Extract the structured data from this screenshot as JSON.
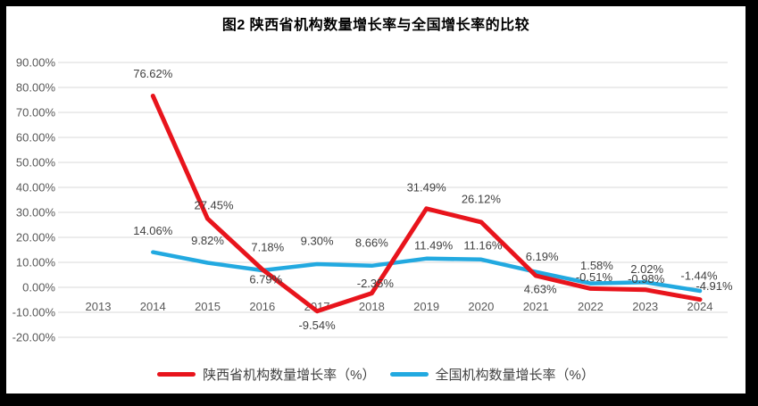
{
  "title": "图2 陕西省机构数量增长率与全国增长率的比较",
  "chart_data": {
    "type": "line",
    "title": "图2 陕西省机构数量增长率与全国增长率的比较",
    "categories": [
      "2013",
      "2014",
      "2015",
      "2016",
      "2017",
      "2018",
      "2019",
      "2020",
      "2021",
      "2022",
      "2023",
      "2024"
    ],
    "series": [
      {
        "key": "shaanxi",
        "name": "陕西省机构数量增长率（%）",
        "color": "#e8141c",
        "stroke_width": 5,
        "values": [
          null,
          76.62,
          27.45,
          7.18,
          -9.54,
          -2.35,
          31.49,
          26.12,
          4.63,
          -0.51,
          -0.98,
          -4.91
        ]
      },
      {
        "key": "national",
        "name": "全国机构数量增长率（%）",
        "color": "#22a9e0",
        "stroke_width": 4.5,
        "values": [
          null,
          14.06,
          9.82,
          6.79,
          9.3,
          8.66,
          11.49,
          11.16,
          6.19,
          1.58,
          2.02,
          -1.44
        ]
      }
    ],
    "ylim": [
      -20,
      90
    ],
    "ytick_step": 10,
    "ytick_labels": [
      "90.00%",
      "80.00%",
      "70.00%",
      "60.00%",
      "50.00%",
      "40.00%",
      "30.00%",
      "20.00%",
      "10.00%",
      "0.00%",
      "-10.00%",
      "-20.00%"
    ],
    "data_labels": true,
    "grid": true,
    "legend_position": "bottom",
    "label_offsets": [
      [
        null,
        [
          0,
          -25
        ],
        [
          7,
          -15
        ],
        [
          6,
          -25
        ],
        [
          0,
          16
        ],
        [
          4,
          -11
        ],
        [
          0,
          -24
        ],
        [
          0,
          -26
        ],
        [
          5,
          15
        ],
        [
          4,
          -13
        ],
        [
          1,
          -12
        ],
        [
          16,
          -15
        ]
      ],
      [
        null,
        [
          0,
          -24
        ],
        [
          0,
          -25
        ],
        [
          4,
          10
        ],
        [
          0,
          -26
        ],
        [
          0,
          -26
        ],
        [
          8,
          -15
        ],
        [
          2,
          -16
        ],
        [
          7,
          -17
        ],
        [
          7,
          -20
        ],
        [
          2,
          -15
        ],
        [
          -1,
          -17
        ]
      ]
    ],
    "colors": {
      "grid": "#d9d9d9",
      "axis_text": "#595959",
      "data_label_text": "#404040"
    }
  }
}
